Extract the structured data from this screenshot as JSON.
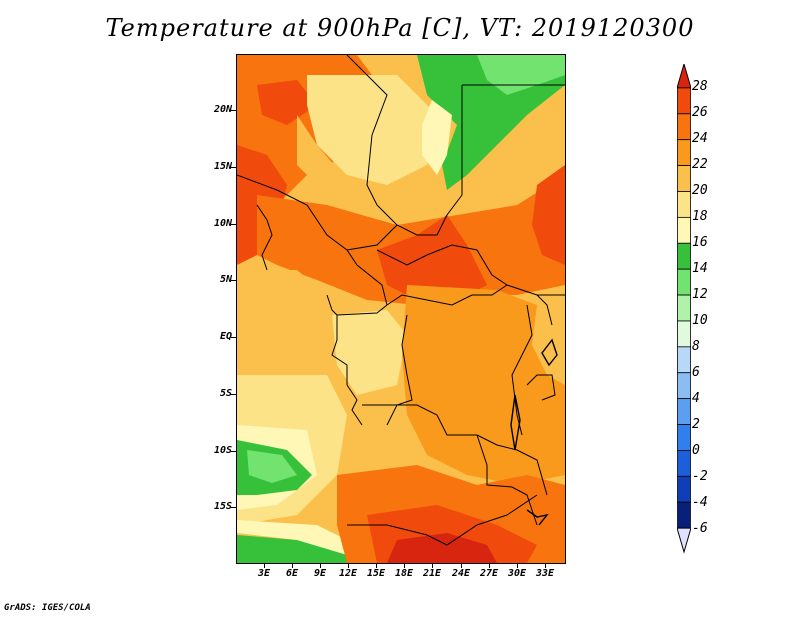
{
  "title": "Temperature at 900hPa [C], VT: 2019120300",
  "credit": "GrADS: IGES/COLA",
  "lat_ticks": [
    "20N",
    "15N",
    "10N",
    "5N",
    "EQ",
    "5S",
    "10S",
    "15S"
  ],
  "lon_ticks": [
    "3E",
    "6E",
    "9E",
    "12E",
    "15E",
    "18E",
    "21E",
    "24E",
    "27E",
    "30E",
    "33E"
  ],
  "colorbar": {
    "levels": [
      "28",
      "26",
      "24",
      "22",
      "20",
      "18",
      "16",
      "14",
      "12",
      "10",
      "8",
      "6",
      "4",
      "2",
      "0",
      "-2",
      "-4",
      "-6"
    ],
    "colors": [
      "#d72510",
      "#f04a0c",
      "#f7740f",
      "#fa9a1c",
      "#fbc04c",
      "#fde387",
      "#fef7b6",
      "#37c13a",
      "#72e36f",
      "#b0f2a9",
      "#e1fadd",
      "#b7d8f7",
      "#8cbdf2",
      "#5c9ff0",
      "#2f80ec",
      "#1d5fdb",
      "#0f3fb8",
      "#08207a"
    ],
    "over_color": "#d72510",
    "under_color": "#e0e0ff"
  }
}
